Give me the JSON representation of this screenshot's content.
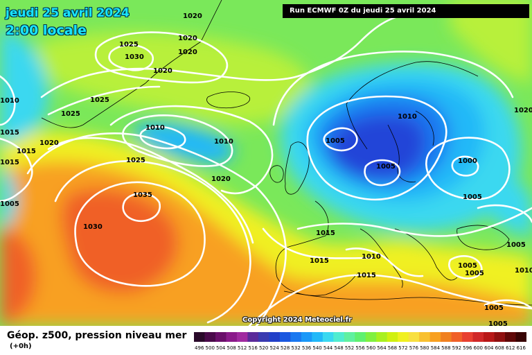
{
  "header": {
    "date": "jeudi 25 avril 2024",
    "time": "2:00 locale",
    "run": "Run ECMWF 0Z du jeudi 25 avril 2024"
  },
  "copyright": "Copyright 2024 Meteociel.fr",
  "footer": {
    "title": "Géop. z500, pression niveau mer",
    "subtitle": "(+0h)"
  },
  "legend": {
    "values": [
      "496",
      "500",
      "504",
      "508",
      "512",
      "516",
      "520",
      "524",
      "528",
      "532",
      "536",
      "540",
      "544",
      "548",
      "552",
      "556",
      "560",
      "564",
      "568",
      "572",
      "576",
      "580",
      "584",
      "588",
      "592",
      "596",
      "600",
      "604",
      "608",
      "612",
      "616"
    ],
    "colors": [
      "#2a0a2a",
      "#4a0a4a",
      "#6a0f6a",
      "#8a1a8a",
      "#a02aa0",
      "#5a2a9a",
      "#3a3ab0",
      "#2240c8",
      "#1a58e0",
      "#1a78f0",
      "#1a98f8",
      "#22b8f8",
      "#3ad8f0",
      "#50ecd0",
      "#60f0a0",
      "#60f070",
      "#80f040",
      "#a8f020",
      "#d0f010",
      "#f0f020",
      "#f8e040",
      "#f8c030",
      "#f8a020",
      "#f08020",
      "#f06028",
      "#e84030",
      "#d02828",
      "#b81818",
      "#901010",
      "#600808",
      "#380404"
    ]
  },
  "map": {
    "colors": {
      "ocean_green": "#7ae85a",
      "cyan": "#3ad8f0",
      "light_blue": "#22b8f8",
      "blue": "#1a78f0",
      "deep_blue": "#2244d8",
      "yellow_green": "#b8f03a",
      "yellow": "#f0f020",
      "orange": "#f8a020",
      "red_orange": "#f06028",
      "isobar": "#ffffff"
    },
    "isobar_labels": [
      {
        "name": "iso-1020-greenland-a",
        "text": "1020"
      },
      {
        "name": "iso-1020-greenland-b",
        "text": "1020"
      },
      {
        "name": "iso-1020-greenland-c",
        "text": "1020"
      },
      {
        "name": "iso-1025-greenland",
        "text": "1025"
      },
      {
        "name": "iso-1030-greenland",
        "text": "1030"
      },
      {
        "name": "iso-1020-greenland-south",
        "text": "1020"
      },
      {
        "name": "iso-1010-west-a",
        "text": "1010"
      },
      {
        "name": "iso-1025-west-a",
        "text": "1025"
      },
      {
        "name": "iso-1025-west-b",
        "text": "1025"
      },
      {
        "name": "iso-1015-west-a",
        "text": "1015"
      },
      {
        "name": "iso-1020-west",
        "text": "1020"
      },
      {
        "name": "iso-1015-west-b",
        "text": "1015"
      },
      {
        "name": "iso-1015-west-c",
        "text": "1015"
      },
      {
        "name": "iso-1005-west",
        "text": "1005"
      },
      {
        "name": "iso-1010-low-a",
        "text": "1010"
      },
      {
        "name": "iso-1010-low-b",
        "text": "1010"
      },
      {
        "name": "iso-1025-mid",
        "text": "1025"
      },
      {
        "name": "iso-1020-mid",
        "text": "1020"
      },
      {
        "name": "iso-1035-azores",
        "text": "1035"
      },
      {
        "name": "iso-1030-azores",
        "text": "1030"
      },
      {
        "name": "iso-1005-scand-a",
        "text": "1005"
      },
      {
        "name": "iso-1010-scand",
        "text": "1010"
      },
      {
        "name": "iso-1005-scand-b",
        "text": "1005"
      },
      {
        "name": "iso-1000-baltic",
        "text": "1000"
      },
      {
        "name": "iso-1005-east",
        "text": "1005"
      },
      {
        "name": "iso-1015-france",
        "text": "1015"
      },
      {
        "name": "iso-1015-spain",
        "text": "1015"
      },
      {
        "name": "iso-1010-italy",
        "text": "1010"
      },
      {
        "name": "iso-1015-med",
        "text": "1015"
      },
      {
        "name": "iso-1005-greece-a",
        "text": "1005"
      },
      {
        "name": "iso-1005-greece-b",
        "text": "1005"
      },
      {
        "name": "iso-1005-turkey",
        "text": "1005"
      },
      {
        "name": "iso-1005-mideast-a",
        "text": "1005"
      },
      {
        "name": "iso-1005-mideast-b",
        "text": "1005"
      },
      {
        "name": "iso-1010-east-edge",
        "text": "1010"
      },
      {
        "name": "iso-1020-east-edge",
        "text": "1020"
      }
    ]
  }
}
